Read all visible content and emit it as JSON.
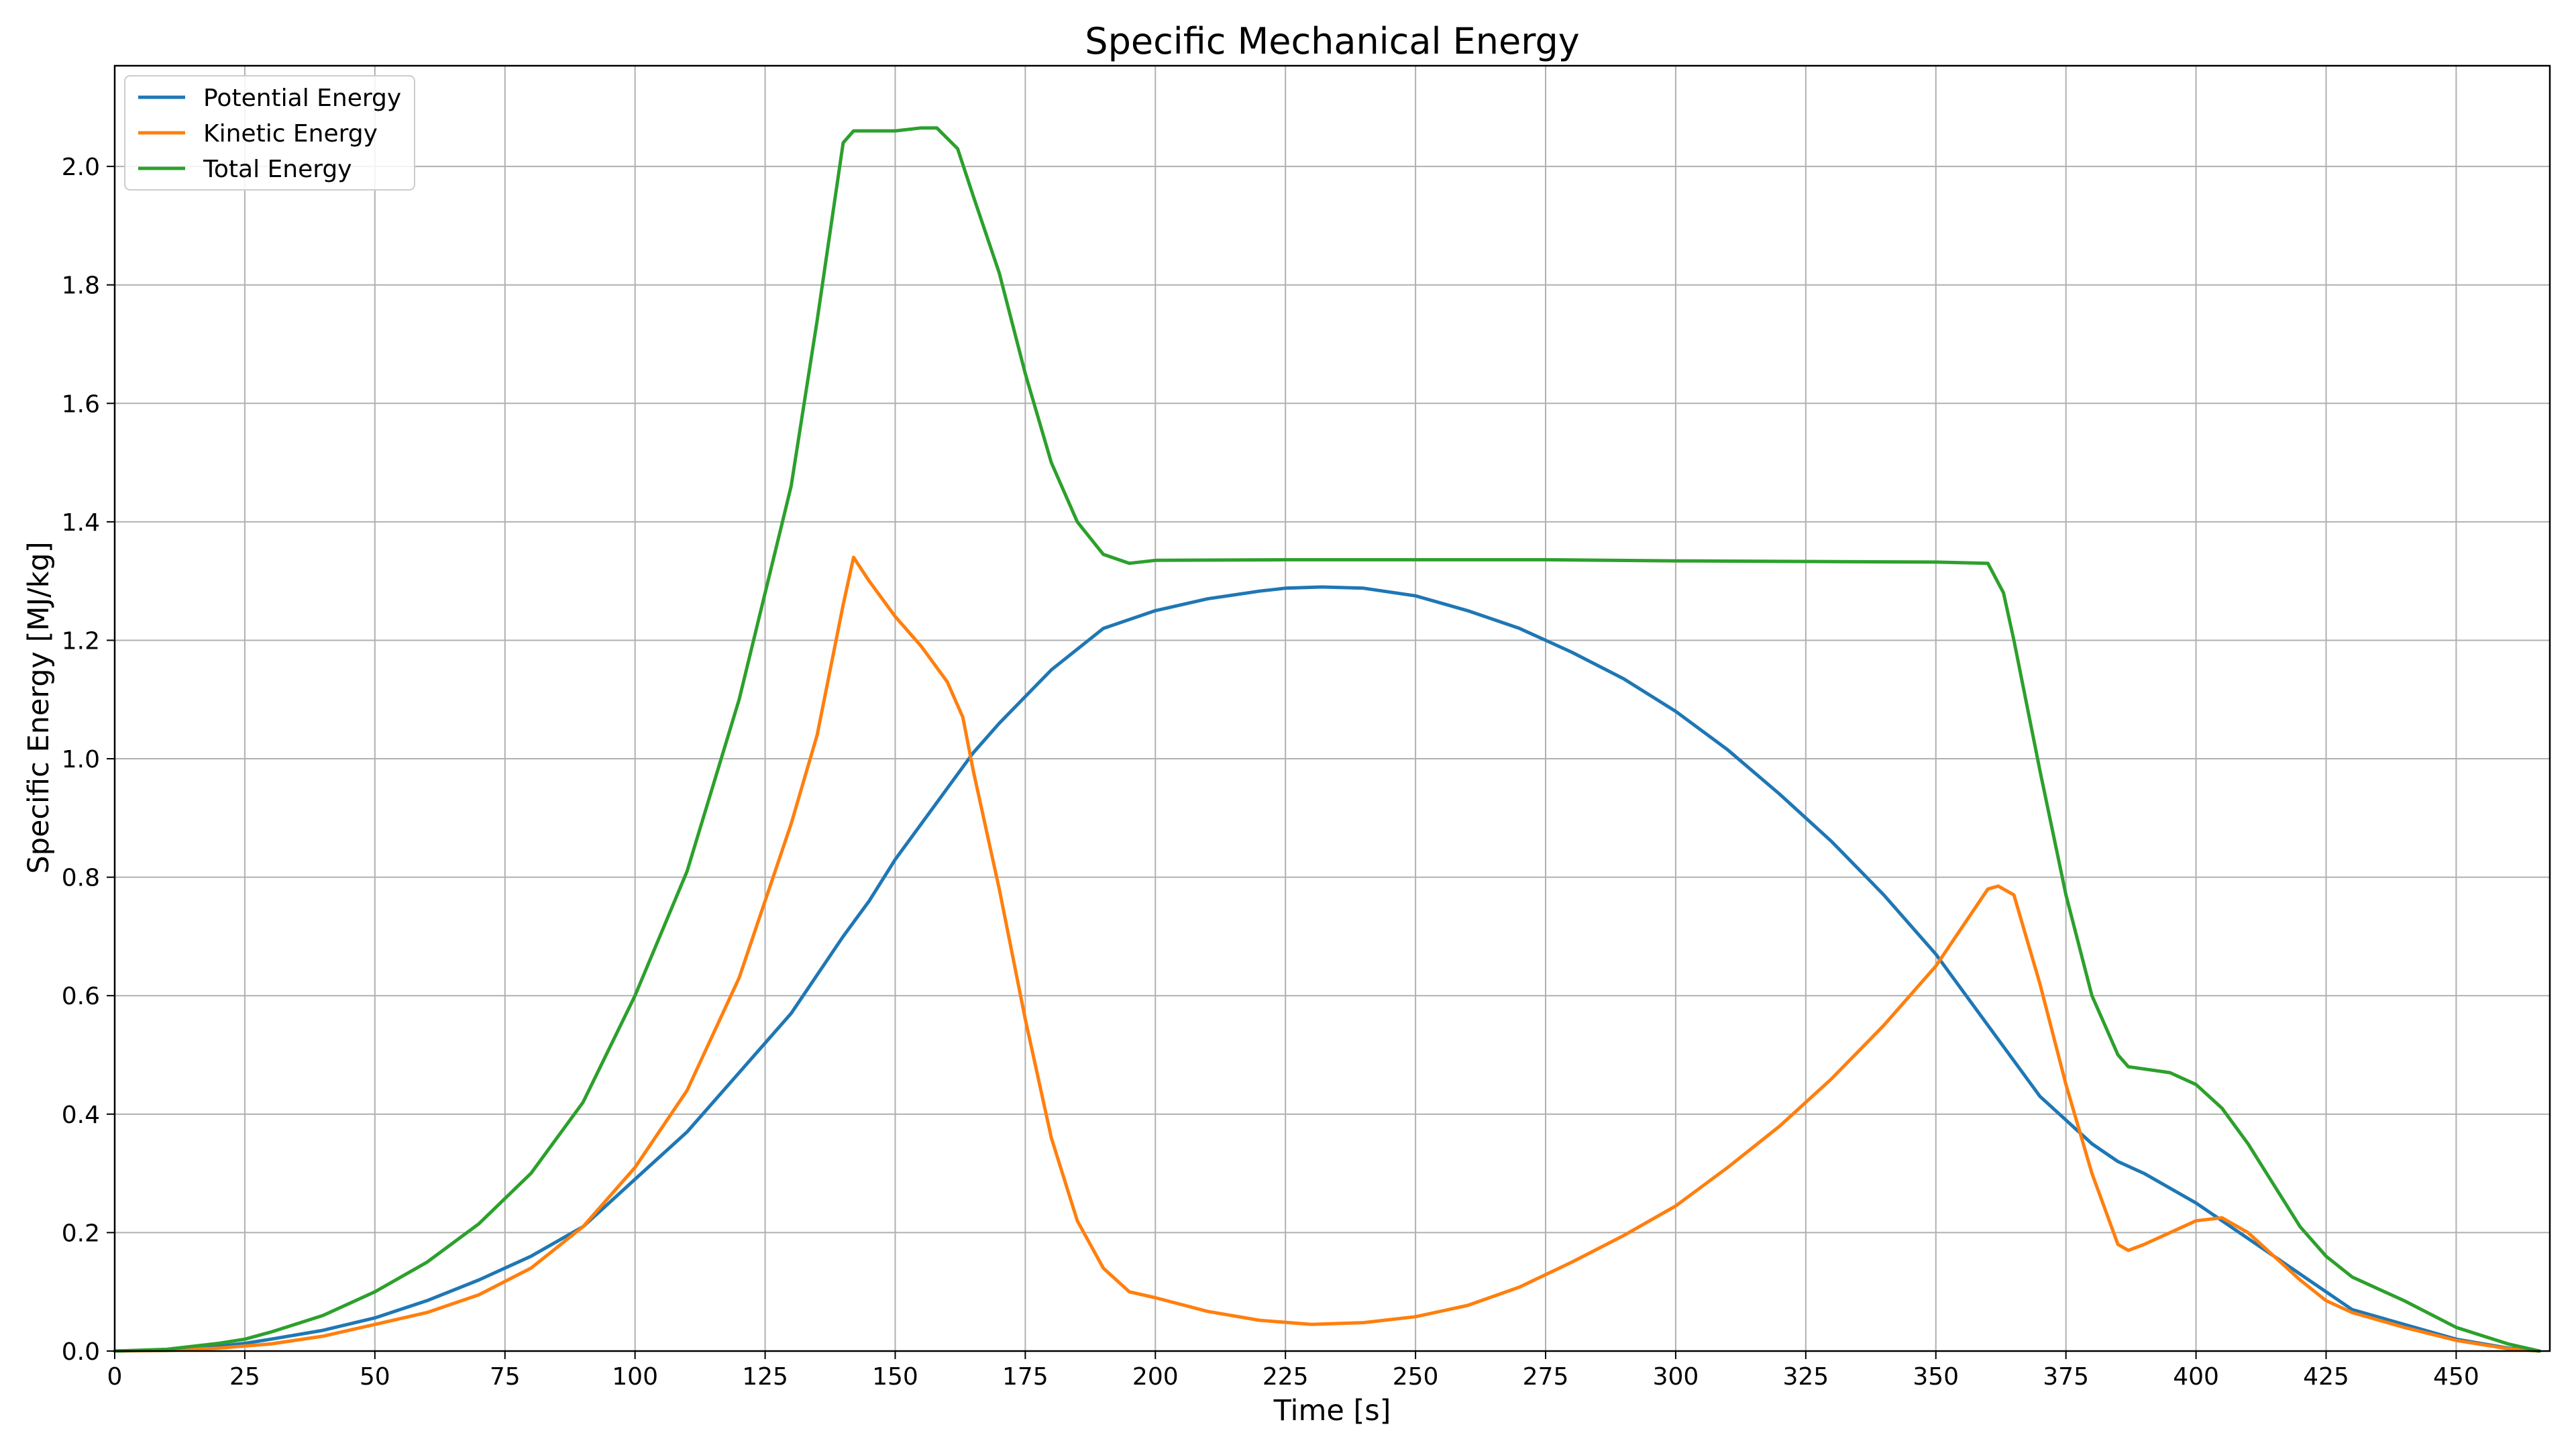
{
  "chart_data": {
    "type": "line",
    "title": "Specific Mechanical Energy",
    "xlabel": "Time [s]",
    "ylabel": "Specific Energy [MJ/kg]",
    "xlim": [
      0,
      468
    ],
    "ylim": [
      0,
      2.17
    ],
    "x_ticks": [
      0,
      25,
      50,
      75,
      100,
      125,
      150,
      175,
      200,
      225,
      250,
      275,
      300,
      325,
      350,
      375,
      400,
      425,
      450
    ],
    "y_ticks": [
      0.0,
      0.2,
      0.4,
      0.6,
      0.8,
      1.0,
      1.2,
      1.4,
      1.6,
      1.8,
      2.0
    ],
    "x_tick_labels": [
      "0",
      "25",
      "50",
      "75",
      "100",
      "125",
      "150",
      "175",
      "200",
      "225",
      "250",
      "275",
      "300",
      "325",
      "350",
      "375",
      "400",
      "425",
      "450"
    ],
    "y_tick_labels": [
      "0.0",
      "0.2",
      "0.4",
      "0.6",
      "0.8",
      "1.0",
      "1.2",
      "1.4",
      "1.6",
      "1.8",
      "2.0"
    ],
    "grid": true,
    "legend_position": "top-left",
    "series": [
      {
        "name": "Potential Energy",
        "color": "#1f77b4",
        "points": [
          [
            0,
            0
          ],
          [
            10,
            0.002
          ],
          [
            20,
            0.008
          ],
          [
            25,
            0.013
          ],
          [
            30,
            0.02
          ],
          [
            40,
            0.035
          ],
          [
            50,
            0.056
          ],
          [
            60,
            0.085
          ],
          [
            70,
            0.12
          ],
          [
            80,
            0.16
          ],
          [
            90,
            0.21
          ],
          [
            100,
            0.29
          ],
          [
            110,
            0.37
          ],
          [
            120,
            0.47
          ],
          [
            130,
            0.57
          ],
          [
            140,
            0.7
          ],
          [
            145,
            0.76
          ],
          [
            150,
            0.83
          ],
          [
            160,
            0.95
          ],
          [
            165,
            1.01
          ],
          [
            170,
            1.06
          ],
          [
            180,
            1.15
          ],
          [
            190,
            1.22
          ],
          [
            200,
            1.25
          ],
          [
            210,
            1.27
          ],
          [
            220,
            1.283
          ],
          [
            225,
            1.288
          ],
          [
            232,
            1.29
          ],
          [
            240,
            1.288
          ],
          [
            250,
            1.275
          ],
          [
            260,
            1.25
          ],
          [
            270,
            1.22
          ],
          [
            280,
            1.18
          ],
          [
            290,
            1.135
          ],
          [
            300,
            1.08
          ],
          [
            310,
            1.015
          ],
          [
            320,
            0.94
          ],
          [
            330,
            0.86
          ],
          [
            340,
            0.77
          ],
          [
            350,
            0.67
          ],
          [
            360,
            0.55
          ],
          [
            370,
            0.43
          ],
          [
            380,
            0.35
          ],
          [
            385,
            0.32
          ],
          [
            390,
            0.3
          ],
          [
            400,
            0.25
          ],
          [
            410,
            0.19
          ],
          [
            420,
            0.13
          ],
          [
            430,
            0.07
          ],
          [
            440,
            0.045
          ],
          [
            450,
            0.02
          ],
          [
            460,
            0.005
          ],
          [
            466,
            0.0
          ]
        ]
      },
      {
        "name": "Kinetic Energy",
        "color": "#ff7f0e",
        "points": [
          [
            0,
            0
          ],
          [
            10,
            0.001
          ],
          [
            20,
            0.005
          ],
          [
            30,
            0.012
          ],
          [
            40,
            0.025
          ],
          [
            50,
            0.045
          ],
          [
            60,
            0.065
          ],
          [
            70,
            0.095
          ],
          [
            80,
            0.14
          ],
          [
            90,
            0.21
          ],
          [
            100,
            0.31
          ],
          [
            110,
            0.44
          ],
          [
            120,
            0.63
          ],
          [
            130,
            0.89
          ],
          [
            135,
            1.04
          ],
          [
            140,
            1.26
          ],
          [
            142,
            1.34
          ],
          [
            145,
            1.3
          ],
          [
            150,
            1.24
          ],
          [
            155,
            1.19
          ],
          [
            160,
            1.13
          ],
          [
            163,
            1.07
          ],
          [
            165,
            0.98
          ],
          [
            170,
            0.78
          ],
          [
            175,
            0.56
          ],
          [
            180,
            0.36
          ],
          [
            185,
            0.22
          ],
          [
            190,
            0.14
          ],
          [
            195,
            0.1
          ],
          [
            200,
            0.09
          ],
          [
            210,
            0.067
          ],
          [
            220,
            0.052
          ],
          [
            230,
            0.045
          ],
          [
            240,
            0.048
          ],
          [
            250,
            0.058
          ],
          [
            260,
            0.077
          ],
          [
            270,
            0.108
          ],
          [
            280,
            0.15
          ],
          [
            290,
            0.195
          ],
          [
            300,
            0.245
          ],
          [
            310,
            0.31
          ],
          [
            320,
            0.38
          ],
          [
            330,
            0.46
          ],
          [
            340,
            0.55
          ],
          [
            350,
            0.65
          ],
          [
            360,
            0.78
          ],
          [
            362,
            0.785
          ],
          [
            365,
            0.77
          ],
          [
            370,
            0.62
          ],
          [
            375,
            0.45
          ],
          [
            380,
            0.3
          ],
          [
            385,
            0.18
          ],
          [
            387,
            0.17
          ],
          [
            390,
            0.18
          ],
          [
            400,
            0.22
          ],
          [
            405,
            0.225
          ],
          [
            410,
            0.2
          ],
          [
            415,
            0.16
          ],
          [
            420,
            0.12
          ],
          [
            425,
            0.085
          ],
          [
            430,
            0.065
          ],
          [
            440,
            0.04
          ],
          [
            450,
            0.018
          ],
          [
            460,
            0.004
          ],
          [
            466,
            0.0
          ]
        ]
      },
      {
        "name": "Total Energy",
        "color": "#2ca02c",
        "points": [
          [
            0,
            0
          ],
          [
            10,
            0.003
          ],
          [
            20,
            0.013
          ],
          [
            25,
            0.02
          ],
          [
            30,
            0.032
          ],
          [
            40,
            0.06
          ],
          [
            50,
            0.1
          ],
          [
            60,
            0.15
          ],
          [
            70,
            0.215
          ],
          [
            80,
            0.3
          ],
          [
            90,
            0.42
          ],
          [
            100,
            0.6
          ],
          [
            110,
            0.81
          ],
          [
            120,
            1.1
          ],
          [
            130,
            1.46
          ],
          [
            135,
            1.74
          ],
          [
            140,
            2.04
          ],
          [
            142,
            2.06
          ],
          [
            150,
            2.06
          ],
          [
            155,
            2.065
          ],
          [
            158,
            2.065
          ],
          [
            162,
            2.03
          ],
          [
            165,
            1.95
          ],
          [
            170,
            1.82
          ],
          [
            175,
            1.65
          ],
          [
            180,
            1.5
          ],
          [
            185,
            1.4
          ],
          [
            190,
            1.345
          ],
          [
            195,
            1.33
          ],
          [
            200,
            1.335
          ],
          [
            225,
            1.336
          ],
          [
            250,
            1.336
          ],
          [
            275,
            1.336
          ],
          [
            300,
            1.334
          ],
          [
            325,
            1.333
          ],
          [
            350,
            1.332
          ],
          [
            360,
            1.33
          ],
          [
            363,
            1.28
          ],
          [
            365,
            1.2
          ],
          [
            370,
            0.98
          ],
          [
            375,
            0.77
          ],
          [
            380,
            0.6
          ],
          [
            385,
            0.5
          ],
          [
            387,
            0.48
          ],
          [
            395,
            0.47
          ],
          [
            400,
            0.45
          ],
          [
            405,
            0.41
          ],
          [
            410,
            0.35
          ],
          [
            415,
            0.28
          ],
          [
            420,
            0.21
          ],
          [
            425,
            0.16
          ],
          [
            430,
            0.125
          ],
          [
            440,
            0.085
          ],
          [
            450,
            0.04
          ],
          [
            460,
            0.012
          ],
          [
            466,
            0.0
          ]
        ]
      }
    ]
  }
}
